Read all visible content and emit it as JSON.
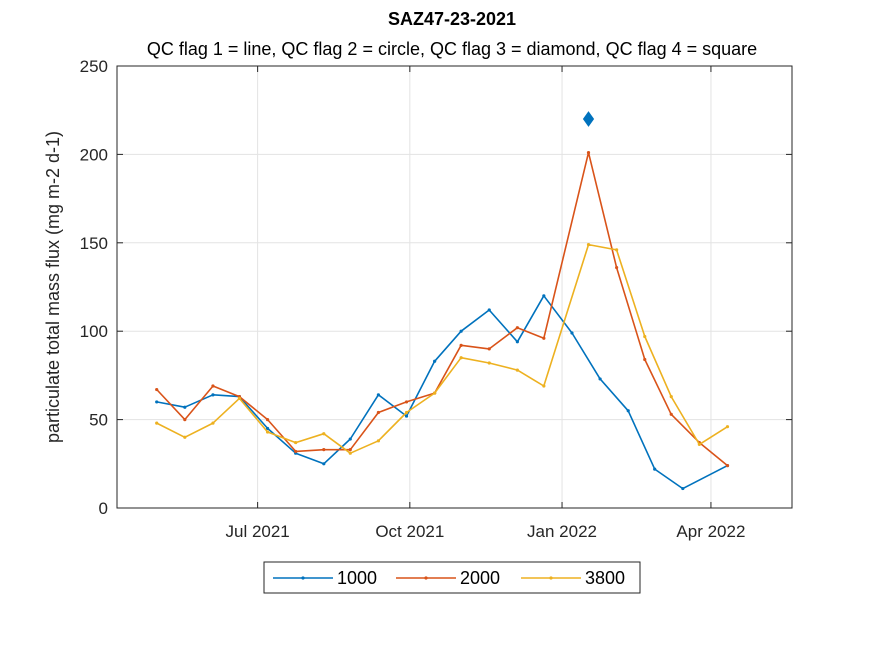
{
  "chart_data": {
    "type": "line",
    "title": "SAZ47-23-2021",
    "subtitle": "QC flag 1 = line, QC flag 2 = circle, QC flag 3 = diamond, QC flag 4 = square",
    "xlabel": "",
    "ylabel": "particulate total mass flux (mg m-2 d-1)",
    "xlim": [
      "2021-04-07",
      "2022-05-20"
    ],
    "ylim": [
      0,
      250
    ],
    "yticks": [
      0,
      50,
      100,
      150,
      200,
      250
    ],
    "xticks": [
      {
        "date": "2021-07-01",
        "label": "Jul 2021"
      },
      {
        "date": "2021-10-01",
        "label": "Oct 2021"
      },
      {
        "date": "2022-01-01",
        "label": "Jan 2022"
      },
      {
        "date": "2022-04-01",
        "label": "Apr 2022"
      }
    ],
    "grid": true,
    "legend_position": "bottom",
    "series": [
      {
        "name": "1000",
        "color": "#0072BD",
        "points": [
          [
            "2021-05-01",
            60
          ],
          [
            "2021-05-18",
            57
          ],
          [
            "2021-06-04",
            64
          ],
          [
            "2021-06-20",
            63
          ],
          [
            "2021-07-07",
            45
          ],
          [
            "2021-07-24",
            31
          ],
          [
            "2021-08-10",
            25
          ],
          [
            "2021-08-26",
            39
          ],
          [
            "2021-09-12",
            64
          ],
          [
            "2021-09-29",
            52
          ],
          [
            "2021-10-16",
            83
          ],
          [
            "2021-11-01",
            100
          ],
          [
            "2021-11-18",
            112
          ],
          [
            "2021-12-05",
            94
          ],
          [
            "2021-12-21",
            120
          ],
          [
            "2022-01-07",
            99
          ],
          [
            "2022-01-24",
            73
          ],
          [
            "2022-02-10",
            55
          ],
          [
            "2022-02-26",
            22
          ],
          [
            "2022-03-15",
            11
          ],
          [
            "2022-04-11",
            24
          ]
        ]
      },
      {
        "name": "2000",
        "color": "#D95319",
        "points": [
          [
            "2021-05-01",
            67
          ],
          [
            "2021-05-18",
            50
          ],
          [
            "2021-06-04",
            69
          ],
          [
            "2021-06-20",
            63
          ],
          [
            "2021-07-07",
            50
          ],
          [
            "2021-07-24",
            32
          ],
          [
            "2021-08-10",
            33
          ],
          [
            "2021-08-26",
            33
          ],
          [
            "2021-09-12",
            54
          ],
          [
            "2021-09-29",
            60
          ],
          [
            "2021-10-16",
            65
          ],
          [
            "2021-11-01",
            92
          ],
          [
            "2021-11-18",
            90
          ],
          [
            "2021-12-05",
            102
          ],
          [
            "2021-12-21",
            96
          ],
          [
            "2022-01-17",
            201
          ],
          [
            "2022-02-03",
            136
          ],
          [
            "2022-02-20",
            84
          ],
          [
            "2022-03-08",
            53
          ],
          [
            "2022-03-25",
            37
          ],
          [
            "2022-04-11",
            24
          ]
        ]
      },
      {
        "name": "3800",
        "color": "#EDB120",
        "points": [
          [
            "2021-05-01",
            48
          ],
          [
            "2021-05-18",
            40
          ],
          [
            "2021-06-04",
            48
          ],
          [
            "2021-06-20",
            62
          ],
          [
            "2021-07-07",
            43
          ],
          [
            "2021-07-24",
            37
          ],
          [
            "2021-08-10",
            42
          ],
          [
            "2021-08-26",
            31
          ],
          [
            "2021-09-12",
            38
          ],
          [
            "2021-09-29",
            54
          ],
          [
            "2021-10-16",
            65
          ],
          [
            "2021-11-01",
            85
          ],
          [
            "2021-11-18",
            82
          ],
          [
            "2021-12-05",
            78
          ],
          [
            "2021-12-21",
            69
          ],
          [
            "2022-01-17",
            149
          ],
          [
            "2022-02-03",
            146
          ],
          [
            "2022-02-20",
            97
          ],
          [
            "2022-03-08",
            63
          ],
          [
            "2022-03-25",
            36
          ],
          [
            "2022-04-11",
            46
          ]
        ]
      }
    ],
    "flagged_points": [
      {
        "series": "1000",
        "qc_flag": 3,
        "marker": "diamond",
        "date": "2022-01-17",
        "y": 220,
        "color": "#0072BD"
      }
    ]
  }
}
